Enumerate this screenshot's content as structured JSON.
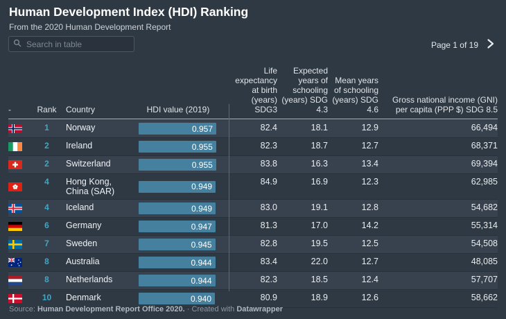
{
  "header": {
    "title": "Human Development Index (HDI) Ranking",
    "subtitle": "From the 2020 Human Development Report",
    "search_placeholder": "Search in table",
    "pagination": {
      "label": "Page 1 of 19",
      "next_icon": "chevron-right-icon"
    }
  },
  "table": {
    "columns": [
      {
        "id": "flag",
        "label": "-",
        "align": "left"
      },
      {
        "id": "rank",
        "label": "Rank",
        "align": "center"
      },
      {
        "id": "country",
        "label": "Country",
        "align": "left"
      },
      {
        "id": "hdi",
        "label": "HDI value (2019)",
        "align": "center"
      },
      {
        "id": "life",
        "label": "Life expectancy at birth (years) SDG3",
        "align": "right"
      },
      {
        "id": "eys",
        "label": "Expected years of schooling (years) SDG 4.3",
        "align": "right"
      },
      {
        "id": "mys",
        "label": "Mean years of schooling (years) SDG 4.6",
        "align": "right"
      },
      {
        "id": "gni",
        "label": "Gross national income (GNI) per capita (PPP $) SDG 8.5",
        "align": "right"
      }
    ],
    "rows": [
      {
        "flag": "norway",
        "rank": "1",
        "country": "Norway",
        "hdi": 0.957,
        "hdi_label": "0.957",
        "life": "82.4",
        "eys": "18.1",
        "mys": "12.9",
        "gni": "66,494"
      },
      {
        "flag": "ireland",
        "rank": "2",
        "country": "Ireland",
        "hdi": 0.955,
        "hdi_label": "0.955",
        "life": "82.3",
        "eys": "18.7",
        "mys": "12.7",
        "gni": "68,371"
      },
      {
        "flag": "switzerland",
        "rank": "2",
        "country": "Switzerland",
        "hdi": 0.955,
        "hdi_label": "0.955",
        "life": "83.8",
        "eys": "16.3",
        "mys": "13.4",
        "gni": "69,394"
      },
      {
        "flag": "hongkong",
        "rank": "4",
        "country": "Hong Kong, China (SAR)",
        "hdi": 0.949,
        "hdi_label": "0.949",
        "life": "84.9",
        "eys": "16.9",
        "mys": "12.3",
        "gni": "62,985"
      },
      {
        "flag": "iceland",
        "rank": "4",
        "country": "Iceland",
        "hdi": 0.949,
        "hdi_label": "0.949",
        "life": "83.0",
        "eys": "19.1",
        "mys": "12.8",
        "gni": "54,682"
      },
      {
        "flag": "germany",
        "rank": "6",
        "country": "Germany",
        "hdi": 0.947,
        "hdi_label": "0.947",
        "life": "81.3",
        "eys": "17.0",
        "mys": "14.2",
        "gni": "55,314"
      },
      {
        "flag": "sweden",
        "rank": "7",
        "country": "Sweden",
        "hdi": 0.945,
        "hdi_label": "0.945",
        "life": "82.8",
        "eys": "19.5",
        "mys": "12.5",
        "gni": "54,508"
      },
      {
        "flag": "australia",
        "rank": "8",
        "country": "Australia",
        "hdi": 0.944,
        "hdi_label": "0.944",
        "life": "83.4",
        "eys": "22.0",
        "mys": "12.7",
        "gni": "48,085"
      },
      {
        "flag": "netherlands",
        "rank": "8",
        "country": "Netherlands",
        "hdi": 0.944,
        "hdi_label": "0.944",
        "life": "82.3",
        "eys": "18.5",
        "mys": "12.4",
        "gni": "57,707"
      },
      {
        "flag": "denmark",
        "rank": "10",
        "country": "Denmark",
        "hdi": 0.94,
        "hdi_label": "0.940",
        "life": "80.9",
        "eys": "18.9",
        "mys": "12.6",
        "gni": "58,662"
      }
    ]
  },
  "footer": {
    "source_label": "Source:",
    "source": "Human Development Report Office 2020.",
    "separator": "·",
    "credit_prefix": "Created with",
    "credit": "Datawrapper"
  },
  "colors": {
    "background": "#2f3944",
    "row_alt": "#38424e",
    "bar": "#45819f",
    "rank": "#41a6c4",
    "header_border": "#aab2ba"
  }
}
